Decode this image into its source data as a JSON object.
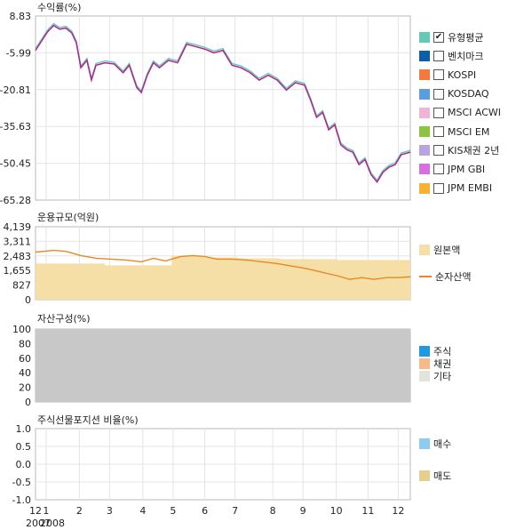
{
  "chart_data": [
    {
      "type": "line",
      "title": "수익률(%)",
      "yticks": [
        "8.83",
        "-5.99",
        "-20.81",
        "-35.63",
        "-50.45",
        "-65.28"
      ],
      "ylim": [
        -65.28,
        8.83
      ],
      "x_months": [
        "12",
        "1",
        "2",
        "3",
        "4",
        "5",
        "6",
        "7",
        "8",
        "9",
        "10",
        "11",
        "12"
      ],
      "year_label": "2007|2008",
      "legend": [
        {
          "label": "유형평균",
          "color": "#66c9b6",
          "checked": true
        },
        {
          "label": "벤치마크",
          "color": "#0b5ea8",
          "checked": false
        },
        {
          "label": "KOSPI",
          "color": "#f37a3c",
          "checked": false
        },
        {
          "label": "KOSDAQ",
          "color": "#5b9ee0",
          "checked": false
        },
        {
          "label": "MSCI ACWI",
          "color": "#f2b3d8",
          "checked": false
        },
        {
          "label": "MSCI EM",
          "color": "#8bc53f",
          "checked": false
        },
        {
          "label": "KIS채권 2년",
          "color": "#b7a4e0",
          "checked": false
        },
        {
          "label": "JPM GBI",
          "color": "#d76fe0",
          "checked": false
        },
        {
          "label": "JPM EMBI",
          "color": "#f9b134",
          "checked": false
        }
      ],
      "series": [
        {
          "name": "",
          "color": "#b0258f",
          "x": [
            0,
            0.4,
            0.6,
            0.8,
            1.0,
            1.2,
            1.35,
            1.5,
            1.7,
            1.85,
            2.0,
            2.3,
            2.6,
            2.9,
            3.1,
            3.35,
            3.5,
            3.7,
            3.9,
            4.1,
            4.4,
            4.7,
            5.0,
            5.3,
            5.6,
            5.9,
            6.2,
            6.5,
            6.8,
            7.1,
            7.4,
            7.7,
            8.0,
            8.3,
            8.6,
            8.9,
            9.1,
            9.3,
            9.5,
            9.7,
            9.9,
            10.1,
            10.3,
            10.5,
            10.7,
            10.9,
            11.1,
            11.3,
            11.5,
            11.7,
            11.9,
            12.1,
            12.4
          ],
          "y": [
            -5.0,
            2.5,
            5.0,
            3.5,
            4.0,
            2.0,
            -2.0,
            -12.0,
            -9.0,
            -17.0,
            -11.0,
            -10.0,
            -10.5,
            -14.0,
            -11.0,
            -20.0,
            -22.0,
            -15.0,
            -10.0,
            -12.0,
            -9.0,
            -10.0,
            -2.5,
            -3.5,
            -4.5,
            -6.0,
            -5.0,
            -11.0,
            -12.0,
            -14.0,
            -17.0,
            -15.0,
            -17.0,
            -21.0,
            -18.0,
            -19.0,
            -25.0,
            -32.0,
            -30.0,
            -37.0,
            -35.0,
            -43.0,
            -45.0,
            -46.0,
            -51.0,
            -49.0,
            -55.0,
            -58.0,
            -54.0,
            -52.0,
            -51.0,
            -47.0,
            -46.0
          ]
        }
      ]
    },
    {
      "type": "area",
      "title": "운용규모(억원)",
      "yticks": [
        "4,139",
        "3,311",
        "2,483",
        "1,655",
        "827",
        "0"
      ],
      "ylim": [
        0,
        4139
      ],
      "legend": [
        {
          "label": "원본액",
          "color": "#f5dfa6"
        },
        {
          "label": "순자산액",
          "color": "#e58a24"
        }
      ],
      "series": [
        {
          "name": "원본액",
          "x": [
            0,
            2.3,
            2.3,
            4.5,
            4.5,
            5.6,
            5.6,
            6.7,
            6.7,
            8.1,
            8.1,
            10.0,
            10.0,
            12.4
          ],
          "y": [
            2050,
            2050,
            1950,
            1950,
            2500,
            2500,
            2400,
            2400,
            2350,
            2350,
            2300,
            2300,
            2250,
            2250
          ]
        },
        {
          "name": "순자산액",
          "x": [
            0,
            0.6,
            1.0,
            1.5,
            2.0,
            2.5,
            3.0,
            3.5,
            3.9,
            4.3,
            4.8,
            5.2,
            5.6,
            6.0,
            6.5,
            7.0,
            7.5,
            8.0,
            8.5,
            9.0,
            9.5,
            10.0,
            10.4,
            10.8,
            11.2,
            11.6,
            12.0,
            12.4
          ],
          "y": [
            2700,
            2800,
            2750,
            2500,
            2350,
            2300,
            2250,
            2150,
            2350,
            2200,
            2450,
            2500,
            2450,
            2300,
            2300,
            2250,
            2150,
            2050,
            1900,
            1750,
            1550,
            1350,
            1150,
            1250,
            1150,
            1250,
            1250,
            1300
          ]
        }
      ]
    },
    {
      "type": "area",
      "title": "자산구성(%)",
      "yticks": [
        "100",
        "80",
        "60",
        "40",
        "20",
        "0"
      ],
      "ylim": [
        0,
        100
      ],
      "legend": [
        {
          "label": "주식",
          "color": "#1e9be0"
        },
        {
          "label": "채권",
          "color": "#f7b98b"
        },
        {
          "label": "기타",
          "color": "#e3e3dc"
        }
      ],
      "series": [
        {
          "name": "기타",
          "x": [
            0,
            12.4
          ],
          "y": [
            100,
            100
          ]
        }
      ]
    },
    {
      "type": "line",
      "title": "주식선물포지션 비율(%)",
      "yticks": [
        "1.0",
        "0.5",
        "0.0",
        "-0.5",
        "-1.0"
      ],
      "ylim": [
        -1.0,
        1.0
      ],
      "legend": [
        {
          "label": "매수",
          "color": "#8ccbf2"
        },
        {
          "label": "매도",
          "color": "#e6cf8a"
        }
      ]
    }
  ]
}
